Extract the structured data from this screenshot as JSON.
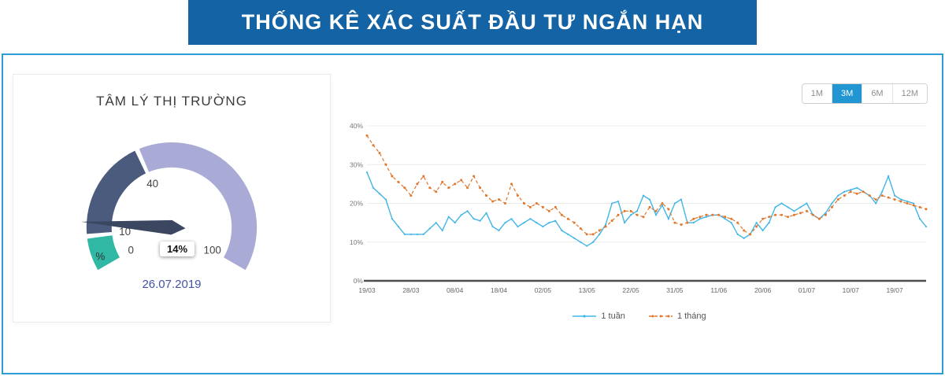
{
  "banner": {
    "title": "THỐNG KÊ XÁC SUẤT ĐẦU TƯ NGẮN HẠN",
    "background_color": "#1464a5"
  },
  "frame": {
    "border_color": "#2d9bd8"
  },
  "gauge": {
    "title": "TÂM LÝ THỊ TRƯỜNG",
    "value": 14,
    "value_label": "14%",
    "date": "26.07.2019",
    "unit_label": "%",
    "min": 0,
    "max": 100,
    "ticks": [
      {
        "value": 0,
        "label": "0"
      },
      {
        "value": 10,
        "label": "10"
      },
      {
        "value": 40,
        "label": "40"
      },
      {
        "value": 100,
        "label": "100"
      }
    ],
    "segments": [
      {
        "from": 0,
        "to": 10,
        "color": "#30b8a4"
      },
      {
        "from": 10,
        "to": 40,
        "color": "#4a5b7d"
      },
      {
        "from": 40,
        "to": 100,
        "color": "#a9abd6"
      }
    ],
    "needle_color": "#3b4660",
    "date_color": "#4254a3"
  },
  "range_selector": {
    "options": [
      {
        "label": "1M",
        "active": false
      },
      {
        "label": "3M",
        "active": true
      },
      {
        "label": "6M",
        "active": false
      },
      {
        "label": "12M",
        "active": false
      }
    ],
    "active_color": "#2196d3"
  },
  "chart_data": {
    "type": "line",
    "title": "",
    "xlabel": "",
    "ylabel": "",
    "ylim": [
      0,
      40
    ],
    "grid": true,
    "legend_position": "bottom",
    "y_ticks": [
      {
        "value": 0,
        "label": "0%"
      },
      {
        "value": 10,
        "label": "10%"
      },
      {
        "value": 20,
        "label": "20%"
      },
      {
        "value": 30,
        "label": "30%"
      },
      {
        "value": 40,
        "label": "40%"
      }
    ],
    "x_ticks": [
      {
        "index": 0,
        "label": "19/03"
      },
      {
        "index": 7,
        "label": "28/03"
      },
      {
        "index": 14,
        "label": "08/04"
      },
      {
        "index": 21,
        "label": "18/04"
      },
      {
        "index": 28,
        "label": "02/05"
      },
      {
        "index": 35,
        "label": "13/05"
      },
      {
        "index": 42,
        "label": "22/05"
      },
      {
        "index": 49,
        "label": "31/05"
      },
      {
        "index": 56,
        "label": "11/06"
      },
      {
        "index": 63,
        "label": "20/06"
      },
      {
        "index": 70,
        "label": "01/07"
      },
      {
        "index": 77,
        "label": "10/07"
      },
      {
        "index": 84,
        "label": "19/07"
      }
    ],
    "series": [
      {
        "name": "1 tuần",
        "color": "#41b6e6",
        "style": "solid",
        "values": [
          28,
          24,
          22.5,
          21,
          16,
          14,
          12,
          12,
          12,
          12,
          13.5,
          15,
          13,
          16.5,
          15,
          17,
          18,
          16,
          15.5,
          17.5,
          14,
          13,
          15,
          16,
          14,
          15,
          16,
          15,
          14,
          15,
          15.5,
          13,
          12,
          11,
          10,
          9,
          10,
          12,
          14.5,
          20,
          20.5,
          15,
          17,
          18,
          22,
          21,
          17,
          19.5,
          16,
          20,
          21,
          15,
          15,
          16,
          16.5,
          17,
          17,
          16,
          15,
          12,
          11,
          12,
          15,
          13,
          15,
          19,
          20,
          19,
          18,
          19,
          20,
          17,
          16,
          17.5,
          20,
          22,
          23,
          23.5,
          24,
          23,
          22,
          20,
          23,
          27,
          22,
          21,
          20.5,
          20,
          16,
          14
        ]
      },
      {
        "name": "1 tháng",
        "color": "#e0772c",
        "style": "dashed",
        "values": [
          37.5,
          35,
          33,
          30,
          27,
          25.5,
          24,
          22,
          25,
          27,
          24,
          23,
          25.5,
          24,
          25,
          26,
          24,
          27,
          24,
          22,
          20.5,
          21,
          20,
          25,
          22,
          20,
          19,
          20,
          19,
          18,
          19,
          17,
          16,
          15,
          13.5,
          12,
          12,
          13,
          14,
          15.5,
          17,
          18,
          18,
          17,
          16.5,
          19,
          18,
          20,
          18.5,
          15,
          14.5,
          15,
          16,
          16.5,
          17,
          17,
          17,
          16.5,
          16,
          15,
          13,
          12,
          14,
          16,
          16.5,
          17,
          17,
          16.5,
          17,
          17.5,
          18,
          17,
          16,
          17,
          19,
          21,
          22,
          23,
          22.5,
          23,
          22,
          21,
          22,
          21.5,
          21,
          20.5,
          20,
          19.5,
          19,
          18.5
        ]
      }
    ]
  }
}
